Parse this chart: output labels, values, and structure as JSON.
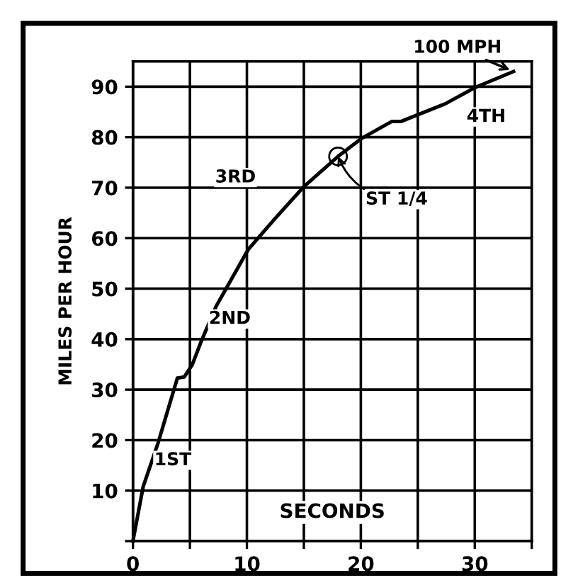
{
  "chart_data": {
    "type": "line",
    "xlabel": "SECONDS",
    "ylabel": "MILES PER HOUR",
    "x": [
      0,
      0.9,
      2.2,
      3.9,
      4.5,
      5.2,
      6.0,
      7.3,
      10.1,
      12.4,
      15.0,
      18.0,
      20.1,
      22.7,
      23.5,
      27.4,
      30.0,
      33.4
    ],
    "series": [
      {
        "color": "#000000",
        "values": [
          0,
          10.8,
          19.4,
          32.3,
          32.5,
          34.9,
          39.6,
          46.5,
          57.7,
          63.7,
          70.2,
          76.2,
          79.8,
          83.1,
          83.1,
          86.6,
          89.8,
          93.0
        ]
      }
    ],
    "xlim": [
      0,
      35
    ],
    "ylim": [
      0,
      95
    ],
    "xticks": [
      0,
      {
        "value": 5,
        "label": null
      },
      10,
      {
        "value": 15,
        "label": null
      },
      20,
      {
        "value": 25,
        "label": null
      },
      30,
      {
        "value": 35,
        "label": null
      }
    ],
    "yticks": [
      {
        "value": 0,
        "label": null
      },
      10,
      20,
      30,
      40,
      50,
      60,
      70,
      80,
      90
    ],
    "grid": true,
    "marker": "none",
    "line_style": "solid",
    "annotations": [
      {
        "text": "1ST",
        "x": 3.5,
        "y": 16
      },
      {
        "text": "2ND",
        "x": 8.5,
        "y": 44
      },
      {
        "text": "3RD",
        "x": 9,
        "y": 72
      },
      {
        "text": "4TH",
        "x": 31,
        "y": 84
      },
      {
        "text": "100 MPH",
        "x": 33.4,
        "y": 93.0
      },
      {
        "text": "ST 1/4",
        "x": 18.0,
        "y": 76.2
      }
    ]
  }
}
